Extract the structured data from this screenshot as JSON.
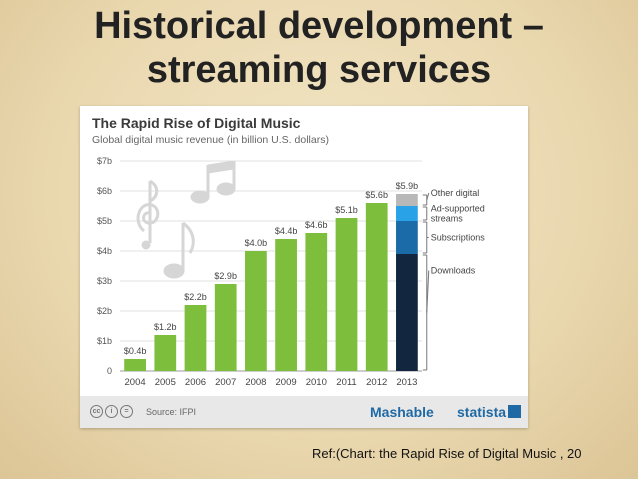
{
  "slide": {
    "title_line1": "Historical development –",
    "title_line2": "streaming services",
    "reference": "Ref:(Chart: the Rapid Rise of Digital Music , 20"
  },
  "chart_data": {
    "type": "bar",
    "title": "The Rapid Rise of Digital Music",
    "subtitle": "Global digital music revenue (in billion U.S. dollars)",
    "categories": [
      "2004",
      "2005",
      "2006",
      "2007",
      "2008",
      "2009",
      "2010",
      "2011",
      "2012",
      "2013"
    ],
    "values": [
      0.4,
      1.2,
      2.2,
      2.9,
      4.0,
      4.4,
      4.6,
      5.1,
      5.6,
      5.9
    ],
    "data_labels": [
      "$0.4b",
      "$1.2b",
      "$2.2b",
      "$2.9b",
      "$4.0b",
      "$4.4b",
      "$4.6b",
      "$5.1b",
      "$5.6b",
      "$5.9b"
    ],
    "y_ticks": [
      0,
      1,
      2,
      3,
      4,
      5,
      6,
      7
    ],
    "y_tick_labels": [
      "0",
      "$1b",
      "$2b",
      "$3b",
      "$4b",
      "$5b",
      "$6b",
      "$7b"
    ],
    "ylim": [
      0,
      7
    ],
    "grid": true,
    "bar_color": "#7dbe3c",
    "stacked_2013": {
      "category": "2013",
      "segments": [
        {
          "name": "Downloads",
          "value": 3.9,
          "color": "#13263f"
        },
        {
          "name": "Subscriptions",
          "value": 1.1,
          "color": "#1b6ba8"
        },
        {
          "name": "Ad-supported streams",
          "value": 0.5,
          "color": "#2aa2e8"
        },
        {
          "name": "Other digital",
          "value": 0.4,
          "color": "#b8b8b8"
        }
      ]
    },
    "legend_placement": "right",
    "source": "Source: IFPI",
    "brands": {
      "mashable": "Mashable",
      "statista": "statista"
    }
  }
}
